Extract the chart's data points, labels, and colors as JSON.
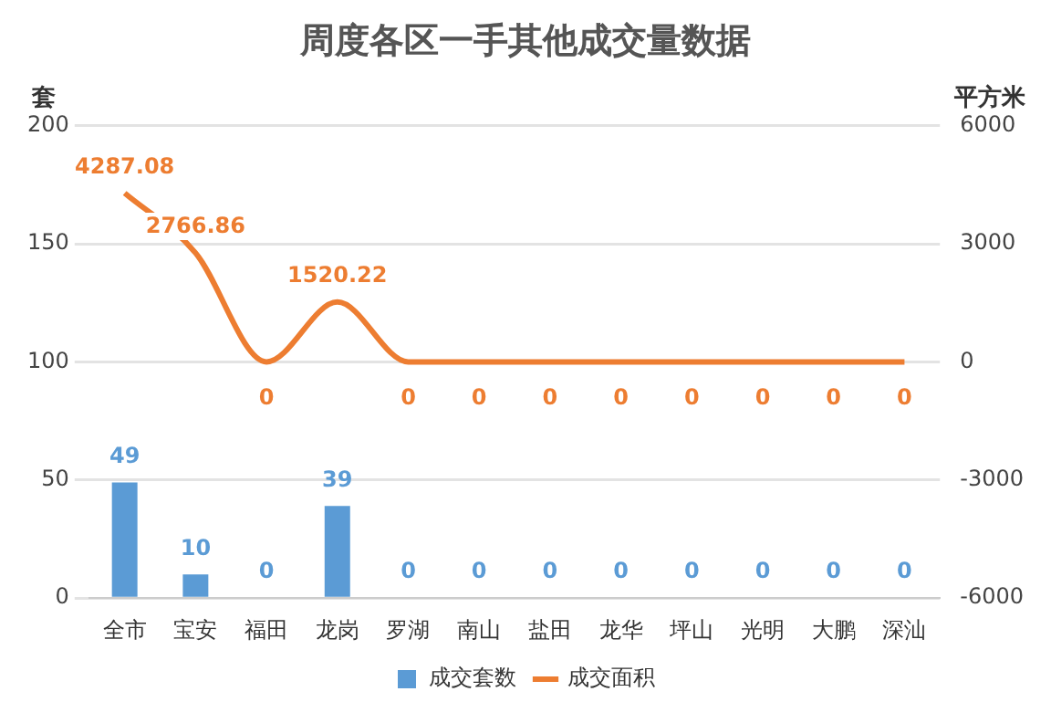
{
  "chart_data": {
    "type": "bar",
    "title": "周度各区一手其他成交量数据",
    "ylabel": "套",
    "y2label": "平方米",
    "categories": [
      "全市",
      "宝安",
      "福田",
      "龙岗",
      "罗湖",
      "南山",
      "盐田",
      "龙华",
      "坪山",
      "光明",
      "大鹏",
      "深汕"
    ],
    "series": [
      {
        "name": "成交套数",
        "color": "#5b9bd5",
        "values": [
          49,
          10,
          0,
          39,
          0,
          0,
          0,
          0,
          0,
          0,
          0,
          0
        ]
      },
      {
        "name": "成交面积",
        "type": "line",
        "axis": "y2",
        "color": "#ed7d31",
        "marker": "none",
        "values": [
          4287.08,
          2766.86,
          0,
          1520.22,
          0,
          0,
          0,
          0,
          0,
          0,
          0,
          0
        ]
      }
    ],
    "ylim": [
      0,
      200
    ],
    "yticks": [
      0,
      50,
      100,
      150,
      200
    ],
    "y2lim": [
      -6000,
      6000
    ],
    "y2ticks": [
      -6000,
      -3000,
      0,
      3000,
      6000
    ],
    "grid": "y",
    "legend": "bottom",
    "data_labels": true
  }
}
